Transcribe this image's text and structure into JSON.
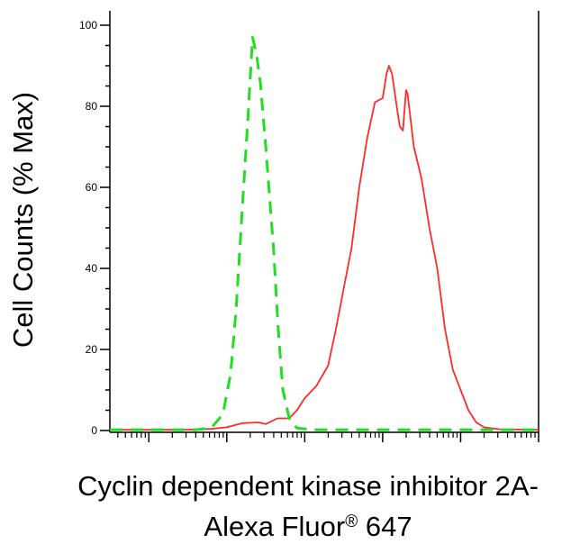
{
  "chart_data": {
    "type": "line",
    "title": "",
    "ylabel": "Cell Counts (% Max)",
    "xlabel_line1": "Cyclin dependent kinase inhibitor 2A-",
    "xlabel_line2": "Alexa Fluor",
    "xlabel_mark": "®",
    "xlabel_line2_suffix": " 647",
    "x_scale": "log",
    "xlim": [
      -1.5,
      4.0
    ],
    "ylim": [
      0,
      100
    ],
    "y_ticks": [
      0,
      20,
      40,
      60,
      80,
      100
    ],
    "y_tick_labels": [
      "0",
      "20",
      "40",
      "60",
      "80",
      "100"
    ],
    "x_tick_labels": [],
    "series": [
      {
        "color": "#ff2a2a",
        "style": "solid",
        "points": [
          [
            -1.5,
            0.2
          ],
          [
            -0.5,
            0.2
          ],
          [
            -0.2,
            0.4
          ],
          [
            0.0,
            0.8
          ],
          [
            0.2,
            1.8
          ],
          [
            0.4,
            2.0
          ],
          [
            0.5,
            1.6
          ],
          [
            0.65,
            3.0
          ],
          [
            0.8,
            3.0
          ],
          [
            0.9,
            5.0
          ],
          [
            1.0,
            8.0
          ],
          [
            1.15,
            11.0
          ],
          [
            1.3,
            16.0
          ],
          [
            1.4,
            25.0
          ],
          [
            1.5,
            35.0
          ],
          [
            1.6,
            45.0
          ],
          [
            1.7,
            60.0
          ],
          [
            1.8,
            72.0
          ],
          [
            1.9,
            81.0
          ],
          [
            2.0,
            82.0
          ],
          [
            2.05,
            88.0
          ],
          [
            2.08,
            90.0
          ],
          [
            2.12,
            88.0
          ],
          [
            2.18,
            80.0
          ],
          [
            2.22,
            75.0
          ],
          [
            2.26,
            74.0
          ],
          [
            2.3,
            84.0
          ],
          [
            2.32,
            83.0
          ],
          [
            2.4,
            70.0
          ],
          [
            2.5,
            62.0
          ],
          [
            2.6,
            50.0
          ],
          [
            2.7,
            40.0
          ],
          [
            2.8,
            25.0
          ],
          [
            2.9,
            15.0
          ],
          [
            3.0,
            10.0
          ],
          [
            3.1,
            5.0
          ],
          [
            3.2,
            2.0
          ],
          [
            3.3,
            0.8
          ],
          [
            3.5,
            0.3
          ],
          [
            4.0,
            0.2
          ]
        ]
      },
      {
        "color": "#22dd22",
        "style": "dashed",
        "points": [
          [
            -1.5,
            0.2
          ],
          [
            -0.4,
            0.2
          ],
          [
            -0.2,
            0.6
          ],
          [
            -0.05,
            4.0
          ],
          [
            0.05,
            14.0
          ],
          [
            0.12,
            30.0
          ],
          [
            0.2,
            55.0
          ],
          [
            0.28,
            80.0
          ],
          [
            0.33,
            97.0
          ],
          [
            0.38,
            93.0
          ],
          [
            0.43,
            86.0
          ],
          [
            0.5,
            70.0
          ],
          [
            0.6,
            45.0
          ],
          [
            0.66,
            25.0
          ],
          [
            0.72,
            10.0
          ],
          [
            0.8,
            3.0
          ],
          [
            0.9,
            0.6
          ],
          [
            1.1,
            0.2
          ],
          [
            4.0,
            0.2
          ]
        ]
      }
    ]
  }
}
